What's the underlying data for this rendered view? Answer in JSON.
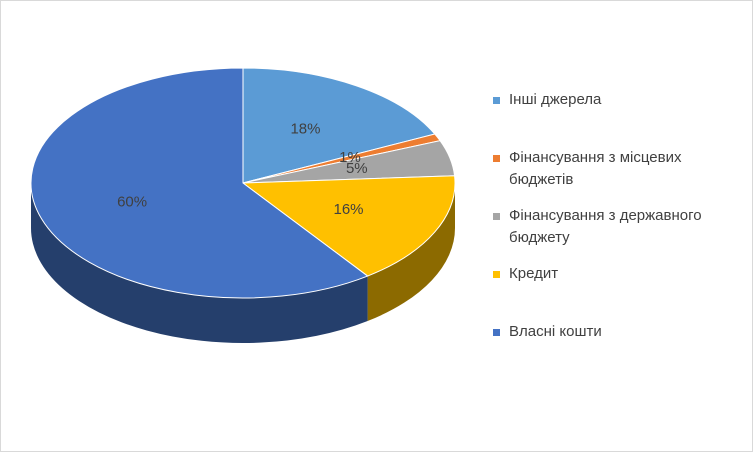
{
  "chart_data": {
    "type": "pie3d",
    "categories": [
      "Інші джерела",
      "Фінансування з місцевих бюджетів",
      "Фінансування з державного бюджету",
      "Кредит",
      "Власні кошти"
    ],
    "values": [
      18,
      1,
      5,
      16,
      60
    ],
    "value_labels": [
      "18%",
      "1%",
      "5%",
      "16%",
      "60%"
    ],
    "colors": [
      "#5b9bd5",
      "#ed7d31",
      "#a5a5a5",
      "#ffc000",
      "#4472c4"
    ],
    "legend": "right"
  }
}
